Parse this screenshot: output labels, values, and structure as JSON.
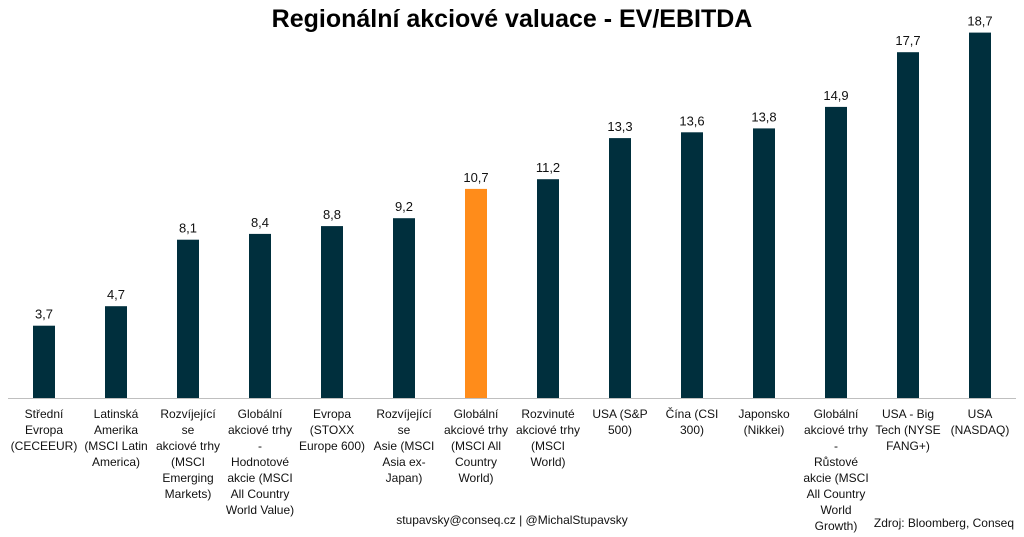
{
  "chart_data": {
    "type": "bar",
    "title": "Regionální akciové valuace - EV/EBITDA",
    "xlabel": "",
    "ylabel": "",
    "ylim": [
      0,
      19.5
    ],
    "grid": false,
    "legend": "none",
    "categories": [
      "Střední Evropa (CECEEUR)",
      "Latinská Amerika (MSCI Latin America)",
      "Rozvíjející se akciové trhy (MSCI Emerging Markets)",
      "Globální akciové trhy - Hodnotové akcie (MSCI All Country World Value)",
      "Evropa (STOXX Europe 600)",
      "Rozvíjející se Asie (MSCI Asia ex-Japan)",
      "Globální akciové trhy (MSCI All Country World)",
      "Rozvinuté akciové trhy (MSCI World)",
      "USA (S&P 500)",
      "Čína (CSI 300)",
      "Japonsko (Nikkei)",
      "Globální akciové trhy - Růstové akcie (MSCI All Country World Growth)",
      "USA - Big Tech (NYSE FANG+)",
      "USA (NASDAQ)"
    ],
    "category_label_lines": [
      [
        "Střední",
        "Evropa",
        "(CECEEUR)"
      ],
      [
        "Latinská",
        "Amerika",
        "(MSCI Latin",
        "America)"
      ],
      [
        "Rozvíjející se",
        "akciové trhy",
        "(MSCI",
        "Emerging",
        "Markets)"
      ],
      [
        "Globální",
        "akciové trhy -",
        "Hodnotové",
        "akcie (MSCI",
        "All Country",
        "World Value)"
      ],
      [
        "Evropa",
        "(STOXX",
        "Europe 600)"
      ],
      [
        "Rozvíjející se",
        "Asie (MSCI",
        "Asia ex-",
        "Japan)"
      ],
      [
        "Globální",
        "akciové trhy",
        "(MSCI All",
        "Country",
        "World)"
      ],
      [
        "Rozvinuté",
        "akciové trhy",
        "(MSCI World)"
      ],
      [
        "USA (S&P",
        "500)"
      ],
      [
        "Čína (CSI",
        "300)"
      ],
      [
        "Japonsko",
        "(Nikkei)"
      ],
      [
        "Globální",
        "akciové trhy -",
        "Růstové",
        "akcie (MSCI",
        "All Country",
        "World",
        "Growth)"
      ],
      [
        "USA - Big",
        "Tech (NYSE",
        "FANG+)"
      ],
      [
        "USA",
        "(NASDAQ)"
      ]
    ],
    "values": [
      3.7,
      4.7,
      8.1,
      8.4,
      8.8,
      9.2,
      10.7,
      11.2,
      13.3,
      13.6,
      13.8,
      14.9,
      17.7,
      18.7
    ],
    "value_labels": [
      "3,7",
      "4,7",
      "8,1",
      "8,4",
      "8,8",
      "9,2",
      "10,7",
      "11,2",
      "13,3",
      "13,6",
      "13,8",
      "14,9",
      "17,7",
      "18,7"
    ],
    "highlight_index": 6,
    "colors": {
      "bar": "#002f3d",
      "highlight": "#ff8c1a",
      "axis": "#bfbfbf",
      "text": "#111111"
    }
  },
  "footer": {
    "contact": "stupavsky@conseq.cz  |  @MichalStupavsky",
    "source": "Zdroj: Bloomberg, Conseq"
  }
}
